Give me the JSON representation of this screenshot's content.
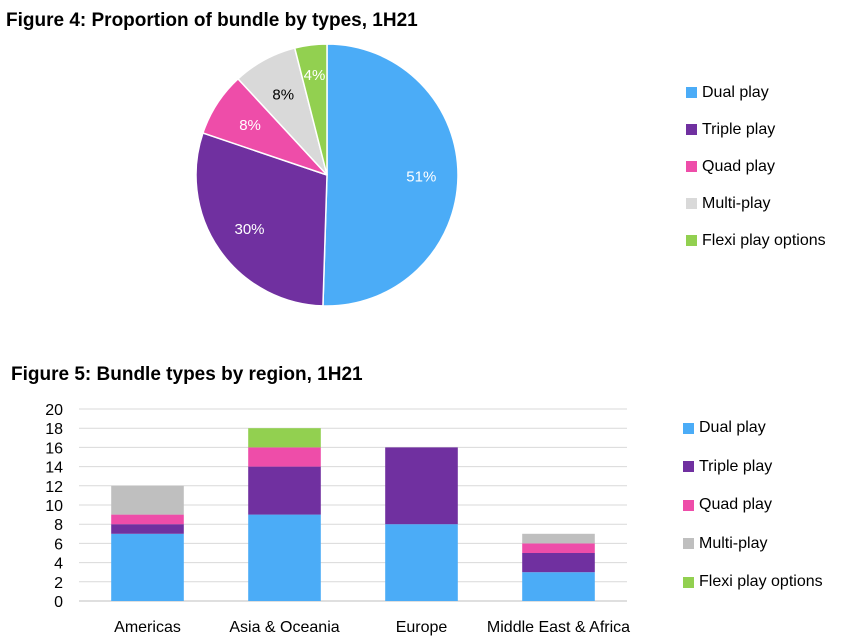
{
  "chart_data": [
    {
      "type": "pie",
      "title": "Figure 4: Proportion of bundle by types, 1H21",
      "slices": [
        {
          "label": "Dual play",
          "value": 51,
          "display": "51%",
          "color": "#4BACF7",
          "text_color": "#ffffff"
        },
        {
          "label": "Triple play",
          "value": 30,
          "display": "30%",
          "color": "#7030A0",
          "text_color": "#ffffff"
        },
        {
          "label": "Quad play",
          "value": 8,
          "display": "8%",
          "color": "#EE4DA9",
          "text_color": "#ffffff"
        },
        {
          "label": "Multi-play",
          "value": 8,
          "display": "8%",
          "color": "#D9D9D9",
          "text_color": "#000000"
        },
        {
          "label": "Flexi play options",
          "value": 4,
          "display": "4%",
          "color": "#92D050",
          "text_color": "#ffffff"
        }
      ],
      "legend_position": "right"
    },
    {
      "type": "bar",
      "stacked": true,
      "title": "Figure 5: Bundle types by region, 1H21",
      "categories": [
        "Americas",
        "Asia & Oceania",
        "Europe",
        "Middle East & Africa"
      ],
      "series": [
        {
          "name": "Dual play",
          "color": "#4BACF7",
          "values": [
            7,
            9,
            8,
            3
          ]
        },
        {
          "name": "Triple play",
          "color": "#7030A0",
          "values": [
            1,
            5,
            8,
            2
          ]
        },
        {
          "name": "Quad play",
          "color": "#EE4DA9",
          "values": [
            1,
            2,
            0,
            1
          ]
        },
        {
          "name": "Multi-play",
          "color": "#BFBFBF",
          "values": [
            3,
            0,
            0,
            1
          ]
        },
        {
          "name": "Flexi play options",
          "color": "#92D050",
          "values": [
            0,
            2,
            0,
            0
          ]
        }
      ],
      "ylim": [
        0,
        20
      ],
      "yticks": [
        "0",
        "2",
        "4",
        "6",
        "8",
        "10",
        "12",
        "14",
        "16",
        "18",
        "20"
      ],
      "grid": true,
      "legend_position": "right"
    }
  ]
}
